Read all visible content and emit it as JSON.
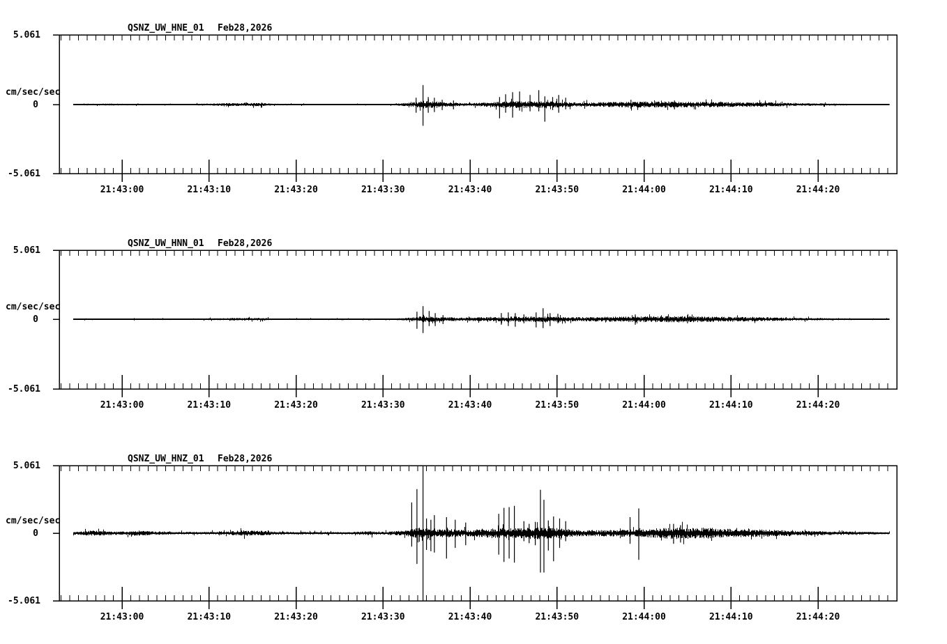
{
  "page": {
    "background_color": "#ffffff",
    "ink_color": "#000000",
    "description": "Three-panel seismogram strip chart (acceleration waveforms), station QSNZ network UW, channels HNE/HNN/HNZ, Feb28,2026 21:42:53-21:44:29 UTC"
  },
  "chart_data": {
    "type": "line",
    "variant": "seismogram",
    "n_panels": 3,
    "date": "Feb28,2026",
    "ylabel": "cm/sec/sec",
    "y_tick_labels": [
      "5.061",
      "0",
      "-5.061"
    ],
    "ylim": [
      -5.061,
      5.061
    ],
    "x_tick_labels": [
      "21:43:00",
      "21:43:10",
      "21:43:20",
      "21:43:30",
      "21:43:40",
      "21:43:50",
      "21:44:00",
      "21:44:10",
      "21:44:20"
    ],
    "x_major_ticks_s": [
      0,
      10,
      20,
      30,
      40,
      50,
      60,
      70,
      80
    ],
    "x_minor_tick_interval_s": 1,
    "time_window": {
      "start": "21:42:53",
      "end": "21:44:29"
    },
    "trace_time_range_s": [
      -5.6,
      88.2
    ],
    "grid": "off",
    "legend": "none",
    "envelope_units": "pairs [seconds after 21:43:00, peak amplitude cm/sec/sec]",
    "spike_units": "triples [seconds after 21:43:00, up amplitude cm/sec/sec, down amplitude cm/sec/sec]",
    "panels": [
      {
        "station": "QSNZ_UW_HNE_01",
        "date": "Feb28,2026",
        "envelope": [
          [
            -5.6,
            0.05
          ],
          [
            -2,
            0.07
          ],
          [
            0,
            0.06
          ],
          [
            5,
            0.05
          ],
          [
            8,
            0.05
          ],
          [
            12.5,
            0.11
          ],
          [
            16,
            0.12
          ],
          [
            17.5,
            0.06
          ],
          [
            22,
            0.05
          ],
          [
            27,
            0.04
          ],
          [
            31,
            0.05
          ],
          [
            33,
            0.14
          ],
          [
            34.6,
            0.28
          ],
          [
            36,
            0.22
          ],
          [
            38,
            0.14
          ],
          [
            40,
            0.1
          ],
          [
            42.5,
            0.18
          ],
          [
            45,
            0.26
          ],
          [
            47,
            0.24
          ],
          [
            50,
            0.24
          ],
          [
            52,
            0.16
          ],
          [
            54,
            0.16
          ],
          [
            57,
            0.2
          ],
          [
            60,
            0.22
          ],
          [
            63,
            0.22
          ],
          [
            66,
            0.2
          ],
          [
            69,
            0.18
          ],
          [
            72,
            0.17
          ],
          [
            75,
            0.15
          ],
          [
            78,
            0.1
          ],
          [
            81,
            0.08
          ],
          [
            84,
            0.05
          ],
          [
            87,
            0.04
          ],
          [
            88.2,
            0.04
          ]
        ],
        "spikes": [
          [
            33.8,
            0.5,
            0.6
          ],
          [
            34.6,
            1.42,
            1.55
          ],
          [
            35.2,
            0.55,
            0.6
          ],
          [
            35.9,
            0.5,
            0.55
          ],
          [
            36.8,
            0.35,
            0.4
          ],
          [
            38.1,
            0.3,
            0.35
          ],
          [
            43.4,
            0.55,
            1.0
          ],
          [
            44.1,
            0.75,
            0.6
          ],
          [
            44.9,
            0.9,
            0.95
          ],
          [
            45.7,
            0.95,
            0.45
          ],
          [
            46.9,
            0.7,
            0.5
          ],
          [
            47.9,
            1.05,
            0.5
          ],
          [
            48.6,
            0.6,
            1.25
          ],
          [
            49.5,
            0.55,
            0.4
          ],
          [
            50.2,
            0.7,
            0.6
          ],
          [
            51.0,
            0.5,
            0.35
          ],
          [
            58.5,
            0.35,
            0.3
          ],
          [
            63.5,
            0.3,
            0.35
          ]
        ]
      },
      {
        "station": "QSNZ_UW_HNN_01",
        "date": "Feb28,2026",
        "envelope": [
          [
            -5.6,
            0.05
          ],
          [
            0,
            0.05
          ],
          [
            8,
            0.04
          ],
          [
            12.5,
            0.09
          ],
          [
            16,
            0.1
          ],
          [
            17.5,
            0.05
          ],
          [
            25,
            0.04
          ],
          [
            31,
            0.04
          ],
          [
            33,
            0.12
          ],
          [
            34.6,
            0.22
          ],
          [
            36,
            0.18
          ],
          [
            39,
            0.12
          ],
          [
            42.5,
            0.16
          ],
          [
            45,
            0.2
          ],
          [
            48,
            0.2
          ],
          [
            50,
            0.2
          ],
          [
            52,
            0.15
          ],
          [
            55,
            0.17
          ],
          [
            58,
            0.2
          ],
          [
            61,
            0.22
          ],
          [
            64,
            0.24
          ],
          [
            67,
            0.2
          ],
          [
            70,
            0.18
          ],
          [
            73,
            0.15
          ],
          [
            76,
            0.12
          ],
          [
            79,
            0.09
          ],
          [
            82,
            0.07
          ],
          [
            85,
            0.05
          ],
          [
            88.2,
            0.05
          ]
        ],
        "spikes": [
          [
            33.9,
            0.55,
            0.7
          ],
          [
            34.6,
            0.95,
            1.0
          ],
          [
            35.3,
            0.6,
            0.5
          ],
          [
            36.0,
            0.45,
            0.5
          ],
          [
            36.9,
            0.3,
            0.35
          ],
          [
            43.6,
            0.45,
            0.4
          ],
          [
            44.4,
            0.5,
            0.5
          ],
          [
            45.2,
            0.45,
            0.55
          ],
          [
            46.2,
            0.35,
            0.3
          ],
          [
            47.6,
            0.5,
            0.6
          ],
          [
            48.4,
            0.8,
            0.65
          ],
          [
            49.2,
            0.45,
            0.5
          ],
          [
            50.1,
            0.4,
            0.3
          ],
          [
            59.0,
            0.35,
            0.4
          ],
          [
            65.0,
            0.3,
            0.3
          ]
        ]
      },
      {
        "station": "QSNZ_UW_HNZ_01",
        "date": "Feb28,2026",
        "envelope": [
          [
            -5.6,
            0.1
          ],
          [
            -3.5,
            0.2
          ],
          [
            -2,
            0.16
          ],
          [
            0,
            0.12
          ],
          [
            1.8,
            0.2
          ],
          [
            3.5,
            0.14
          ],
          [
            6,
            0.1
          ],
          [
            9,
            0.1
          ],
          [
            12,
            0.12
          ],
          [
            14,
            0.22
          ],
          [
            16,
            0.18
          ],
          [
            17.5,
            0.12
          ],
          [
            20,
            0.1
          ],
          [
            23,
            0.09
          ],
          [
            26,
            0.08
          ],
          [
            28.5,
            0.16
          ],
          [
            30,
            0.1
          ],
          [
            32.5,
            0.2
          ],
          [
            34,
            0.4
          ],
          [
            36,
            0.35
          ],
          [
            38,
            0.3
          ],
          [
            40,
            0.25
          ],
          [
            42.5,
            0.35
          ],
          [
            45,
            0.4
          ],
          [
            47.5,
            0.45
          ],
          [
            50,
            0.38
          ],
          [
            52,
            0.25
          ],
          [
            54,
            0.22
          ],
          [
            56,
            0.25
          ],
          [
            58,
            0.28
          ],
          [
            60,
            0.3
          ],
          [
            62,
            0.4
          ],
          [
            63.5,
            0.45
          ],
          [
            65,
            0.38
          ],
          [
            67,
            0.42
          ],
          [
            69,
            0.35
          ],
          [
            71,
            0.3
          ],
          [
            73.5,
            0.28
          ],
          [
            76,
            0.22
          ],
          [
            78,
            0.18
          ],
          [
            80.5,
            0.15
          ],
          [
            83,
            0.12
          ],
          [
            86,
            0.1
          ],
          [
            88.2,
            0.07
          ]
        ],
        "spikes": [
          [
            33.3,
            2.3,
            1.0
          ],
          [
            33.9,
            3.3,
            2.3
          ],
          [
            34.6,
            5.5,
            5.5
          ],
          [
            35.0,
            1.1,
            1.25
          ],
          [
            35.5,
            1.0,
            1.35
          ],
          [
            35.9,
            1.35,
            1.45
          ],
          [
            37.3,
            1.2,
            1.9
          ],
          [
            38.3,
            1.0,
            1.1
          ],
          [
            39.5,
            0.8,
            0.9
          ],
          [
            43.3,
            1.45,
            1.6
          ],
          [
            43.9,
            1.9,
            2.15
          ],
          [
            44.5,
            1.95,
            1.9
          ],
          [
            45.1,
            2.05,
            2.2
          ],
          [
            46.2,
            0.9,
            0.6
          ],
          [
            46.8,
            0.7,
            0.75
          ],
          [
            47.5,
            0.85,
            0.9
          ],
          [
            48.1,
            3.25,
            2.95
          ],
          [
            48.5,
            2.5,
            2.95
          ],
          [
            49.0,
            0.95,
            1.3
          ],
          [
            49.6,
            1.25,
            2.1
          ],
          [
            50.3,
            1.1,
            1.1
          ],
          [
            51.0,
            0.9,
            0.6
          ],
          [
            58.4,
            1.2,
            0.8
          ],
          [
            59.4,
            1.85,
            2.0
          ],
          [
            63.4,
            0.7,
            0.8
          ],
          [
            64.2,
            0.6,
            0.7
          ]
        ]
      }
    ]
  }
}
